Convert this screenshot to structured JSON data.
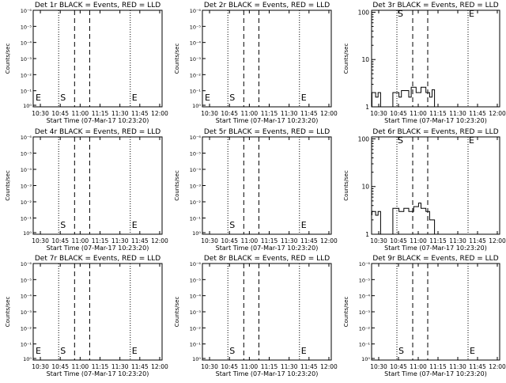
{
  "chart_data": [
    {
      "type": "line",
      "title": "Det 1r BLACK = Events, RED = LLD",
      "xlabel": "Start Time (07-Mar-17 10:23:20)",
      "ylabel": "Counts/sec",
      "yscale": "log",
      "yticks": [
        "10⁰",
        "10⁻¹",
        "10⁻²",
        "10⁻³",
        "10⁻⁴",
        "10⁻⁵",
        "10⁻⁶"
      ],
      "xticks": [
        "10:30",
        "10:45",
        "11:00",
        "11:15",
        "11:30",
        "11:45",
        "12:00"
      ],
      "markers": [
        "E",
        "S",
        "E"
      ],
      "series": []
    },
    {
      "type": "line",
      "title": "Det 2r BLACK = Events, RED = LLD",
      "xlabel": "Start Time (07-Mar-17 10:23:20)",
      "ylabel": "Counts/sec",
      "yscale": "log",
      "yticks": [
        "10⁰",
        "10⁻¹",
        "10⁻²",
        "10⁻³",
        "10⁻⁴",
        "10⁻⁵",
        "10⁻⁶"
      ],
      "xticks": [
        "10:30",
        "10:45",
        "11:00",
        "11:15",
        "11:30",
        "11:45",
        "12:00"
      ],
      "markers": [
        "E",
        "S",
        "E"
      ],
      "series": []
    },
    {
      "type": "line",
      "title": "Det 3r BLACK = Events, RED = LLD",
      "xlabel": "Start Time (07-Mar-17 10:23:20)",
      "ylabel": "Counts/sec",
      "yscale": "log",
      "yticks": [
        "1",
        "10",
        "100"
      ],
      "xticks": [
        "10:30",
        "10:45",
        "11:00",
        "11:15",
        "11:30",
        "11:45",
        "12:00"
      ],
      "markers": [
        "S",
        "E"
      ],
      "series": [
        {
          "values": [
            [
              10.4,
              1
            ],
            [
              10.4,
              2
            ],
            [
              10.43,
              2
            ],
            [
              10.43,
              1.6
            ],
            [
              10.45,
              1.6
            ],
            [
              10.45,
              2
            ],
            [
              10.47,
              2
            ],
            [
              10.47,
              1
            ],
            [
              10.5,
              1
            ],
            [
              10.57,
              1
            ],
            [
              10.57,
              2
            ],
            [
              10.62,
              2
            ],
            [
              10.62,
              1.6
            ],
            [
              10.64,
              1.6
            ],
            [
              10.64,
              2.2
            ],
            [
              10.7,
              2.2
            ],
            [
              10.7,
              1.6
            ],
            [
              10.72,
              1.6
            ],
            [
              10.72,
              2.6
            ],
            [
              10.76,
              2.6
            ],
            [
              10.76,
              2
            ],
            [
              10.8,
              2
            ],
            [
              10.8,
              2.6
            ],
            [
              10.84,
              2.6
            ],
            [
              10.84,
              2
            ],
            [
              10.87,
              2
            ],
            [
              10.87,
              1.6
            ],
            [
              10.89,
              1.6
            ],
            [
              10.89,
              2.3
            ],
            [
              10.91,
              2.3
            ],
            [
              10.91,
              1
            ]
          ]
        }
      ]
    },
    {
      "type": "line",
      "title": "Det 4r BLACK = Events, RED = LLD",
      "xlabel": "Start Time (07-Mar-17 10:23:20)",
      "ylabel": "Counts/sec",
      "yscale": "log",
      "yticks": [
        "10⁰",
        "10⁻¹",
        "10⁻²",
        "10⁻³",
        "10⁻⁴",
        "10⁻⁵",
        "10⁻⁶"
      ],
      "xticks": [
        "10:30",
        "10:45",
        "11:00",
        "11:15",
        "11:30",
        "11:45",
        "12:00"
      ],
      "markers": [
        "S",
        "E"
      ],
      "series": []
    },
    {
      "type": "line",
      "title": "Det 5r BLACK = Events, RED = LLD",
      "xlabel": "Start Time (07-Mar-17 10:23:20)",
      "ylabel": "Counts/sec",
      "yscale": "log",
      "yticks": [
        "10⁰",
        "10⁻¹",
        "10⁻²",
        "10⁻³",
        "10⁻⁴",
        "10⁻⁵",
        "10⁻⁶"
      ],
      "xticks": [
        "10:30",
        "10:45",
        "11:00",
        "11:15",
        "11:30",
        "11:45",
        "12:00"
      ],
      "markers": [
        "S",
        "E"
      ],
      "series": []
    },
    {
      "type": "line",
      "title": "Det 6r BLACK = Events, RED = LLD",
      "xlabel": "Start Time (07-Mar-17 10:23:20)",
      "ylabel": "Counts/sec",
      "yscale": "log",
      "yticks": [
        "1",
        "10",
        "100"
      ],
      "xticks": [
        "10:30",
        "10:45",
        "11:00",
        "11:15",
        "11:30",
        "11:45",
        "12:00"
      ],
      "markers": [
        "S",
        "E"
      ],
      "series": [
        {
          "values": [
            [
              10.4,
              2.5
            ],
            [
              10.4,
              3
            ],
            [
              10.43,
              3
            ],
            [
              10.43,
              2.5
            ],
            [
              10.45,
              2.5
            ],
            [
              10.45,
              3
            ],
            [
              10.47,
              3
            ],
            [
              10.47,
              1
            ],
            [
              10.5,
              1
            ],
            [
              10.57,
              1
            ],
            [
              10.57,
              3.5
            ],
            [
              10.62,
              3.5
            ],
            [
              10.62,
              3
            ],
            [
              10.66,
              3
            ],
            [
              10.66,
              3.5
            ],
            [
              10.7,
              3.5
            ],
            [
              10.7,
              3
            ],
            [
              10.74,
              3
            ],
            [
              10.74,
              3.8
            ],
            [
              10.78,
              3.8
            ],
            [
              10.78,
              4.5
            ],
            [
              10.8,
              4.5
            ],
            [
              10.8,
              3.5
            ],
            [
              10.84,
              3.5
            ],
            [
              10.84,
              3
            ],
            [
              10.87,
              3
            ],
            [
              10.87,
              2
            ],
            [
              10.91,
              2
            ],
            [
              10.91,
              1
            ]
          ]
        }
      ]
    },
    {
      "type": "line",
      "title": "Det 7r BLACK = Events, RED = LLD",
      "xlabel": "Start Time (07-Mar-17 10:23:20)",
      "ylabel": "Counts/sec",
      "yscale": "log",
      "yticks": [
        "10⁰",
        "10⁻¹",
        "10⁻²",
        "10⁻³",
        "10⁻⁴",
        "10⁻⁵",
        "10⁻⁶"
      ],
      "xticks": [
        "10:30",
        "10:45",
        "11:00",
        "11:15",
        "11:30",
        "11:45",
        "12:00"
      ],
      "markers": [
        "E",
        "S",
        "E"
      ],
      "series": []
    },
    {
      "type": "line",
      "title": "Det 8r BLACK = Events, RED = LLD",
      "xlabel": "Start Time (07-Mar-17 10:23:20)",
      "ylabel": "Counts/sec",
      "yscale": "log",
      "yticks": [
        "10⁰",
        "10⁻¹",
        "10⁻²",
        "10⁻³",
        "10⁻⁴",
        "10⁻⁵",
        "10⁻⁶"
      ],
      "xticks": [
        "10:30",
        "10:45",
        "11:00",
        "11:15",
        "11:30",
        "11:45",
        "12:00"
      ],
      "markers": [
        "S",
        "E"
      ],
      "series": []
    },
    {
      "type": "line",
      "title": "Det 9r BLACK = Events, RED = LLD",
      "xlabel": "Start Time (07-Mar-17 10:23:20)",
      "ylabel": "Counts/sec",
      "yscale": "log",
      "yticks": [
        "10⁰",
        "10⁻¹",
        "10⁻²",
        "10⁻³",
        "10⁻⁴",
        "10⁻⁵",
        "10⁻⁶"
      ],
      "xticks": [
        "10:30",
        "10:45",
        "11:00",
        "11:15",
        "11:30",
        "11:45",
        "12:00"
      ],
      "markers": [
        "S",
        "E"
      ],
      "series": []
    }
  ]
}
